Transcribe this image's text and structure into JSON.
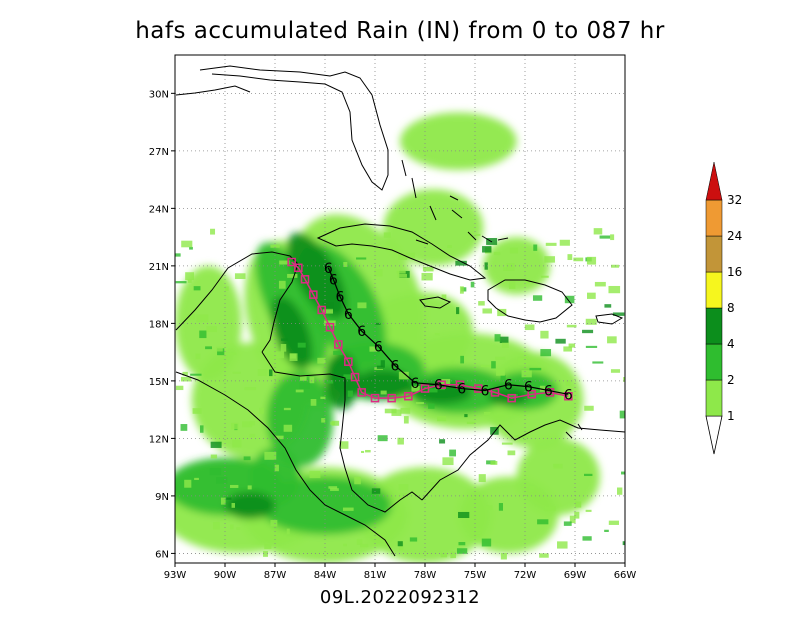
{
  "title": "hafs accumulated Rain (IN) from 0 to 087 hr",
  "footer": "09L.2022092312",
  "map": {
    "lon_range": [
      -93,
      -66
    ],
    "lat_range": [
      5.5,
      32
    ],
    "lon_ticks": [
      "93W",
      "90W",
      "87W",
      "84W",
      "81W",
      "78W",
      "75W",
      "72W",
      "69W",
      "66W"
    ],
    "lat_ticks": [
      "6N",
      "9N",
      "12N",
      "15N",
      "18N",
      "21N",
      "24N",
      "27N",
      "30N"
    ],
    "gridlines": true
  },
  "colorbar": {
    "levels": [
      "1",
      "2",
      "4",
      "8",
      "16",
      "24",
      "32"
    ],
    "colors": [
      "#8ee84a",
      "#2fbd2f",
      "#0c8e1c",
      "#f6f61e",
      "#c29538",
      "#ef9a33",
      "#cc0f0f"
    ]
  },
  "track": {
    "forecast_symbol": "6",
    "forecast_color": "#000000",
    "observed_color": "#dd2a84"
  },
  "chart_data": {
    "type": "map",
    "title": "hafs accumulated Rain (IN) from 0 to 087 hr",
    "xlabel": "",
    "ylabel": "",
    "xlim": [
      -93,
      -66
    ],
    "ylim": [
      5.5,
      32
    ],
    "legend": "right",
    "series": [
      {
        "name": "",
        "points": [
          {
            "lon": -69.4,
            "lat": 14.3
          },
          {
            "lon": -70.6,
            "lat": 14.5
          },
          {
            "lon": -71.8,
            "lat": 14.7
          },
          {
            "lon": -73.0,
            "lat": 14.8
          },
          {
            "lon": -74.4,
            "lat": 14.5
          },
          {
            "lon": -75.8,
            "lat": 14.6
          },
          {
            "lon": -77.2,
            "lat": 14.8
          },
          {
            "lon": -78.6,
            "lat": 14.9
          },
          {
            "lon": -79.8,
            "lat": 15.8
          },
          {
            "lon": -80.8,
            "lat": 16.8
          },
          {
            "lon": -81.8,
            "lat": 17.6
          },
          {
            "lon": -82.6,
            "lat": 18.5
          },
          {
            "lon": -83.1,
            "lat": 19.4
          },
          {
            "lon": -83.5,
            "lat": 20.3
          },
          {
            "lon": -83.8,
            "lat": 20.9
          }
        ]
      },
      {
        "name": "",
        "points": [
          {
            "lon": -69.4,
            "lat": 14.2
          },
          {
            "lon": -70.5,
            "lat": 14.4
          },
          {
            "lon": -71.6,
            "lat": 14.3
          },
          {
            "lon": -72.8,
            "lat": 14.1
          },
          {
            "lon": -73.8,
            "lat": 14.4
          },
          {
            "lon": -74.8,
            "lat": 14.6
          },
          {
            "lon": -75.9,
            "lat": 14.8
          },
          {
            "lon": -77.0,
            "lat": 14.8
          },
          {
            "lon": -78.0,
            "lat": 14.6
          },
          {
            "lon": -79.0,
            "lat": 14.2
          },
          {
            "lon": -80.0,
            "lat": 14.1
          },
          {
            "lon": -81.0,
            "lat": 14.1
          },
          {
            "lon": -81.8,
            "lat": 14.4
          },
          {
            "lon": -82.2,
            "lat": 15.2
          },
          {
            "lon": -82.6,
            "lat": 16.0
          },
          {
            "lon": -83.2,
            "lat": 16.9
          },
          {
            "lon": -83.7,
            "lat": 17.8
          },
          {
            "lon": -84.2,
            "lat": 18.7
          },
          {
            "lon": -84.7,
            "lat": 19.5
          },
          {
            "lon": -85.2,
            "lat": 20.3
          },
          {
            "lon": -85.6,
            "lat": 20.9
          },
          {
            "lon": -86.0,
            "lat": 21.2
          }
        ]
      }
    ]
  }
}
